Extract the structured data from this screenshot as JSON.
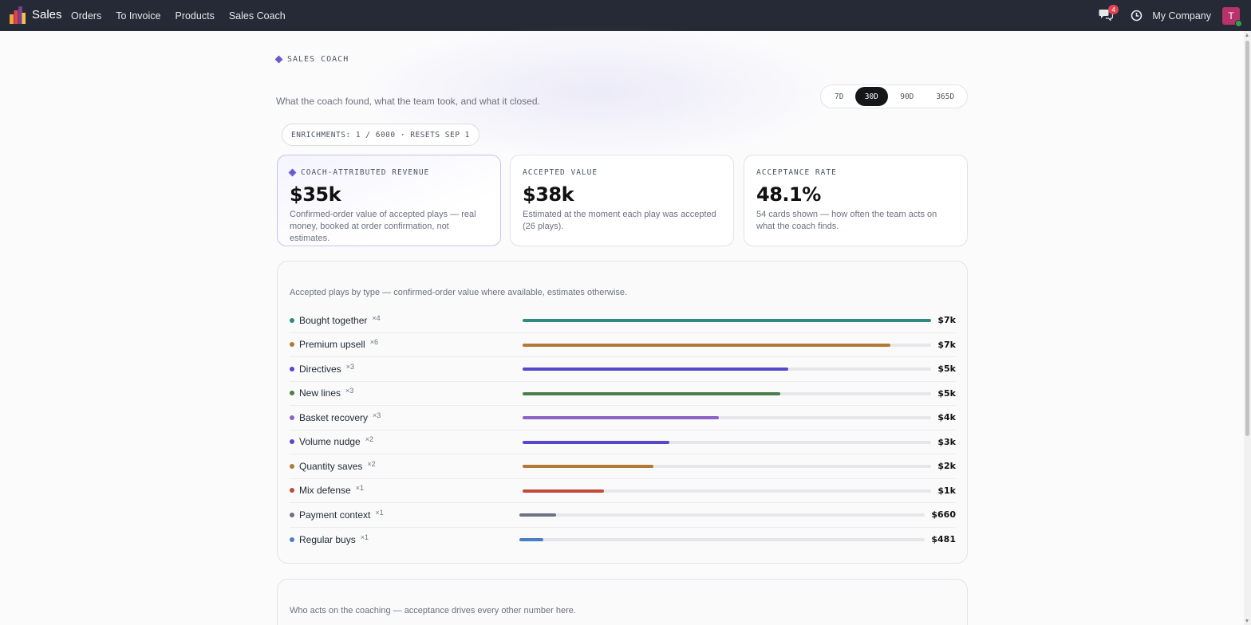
{
  "navbar": {
    "app_name": "Sales",
    "menu": [
      "Orders",
      "To Invoice",
      "Products",
      "Sales Coach"
    ],
    "chat_count": "4",
    "company": "My Company",
    "avatar_initial": "T"
  },
  "header": {
    "eyebrow": "SALES COACH",
    "subtitle": "What the coach found, what the team took, and what it closed.",
    "ranges": [
      "7D",
      "30D",
      "90D",
      "365D"
    ],
    "active_range": "30D",
    "enrichments": "ENRICHMENTS: 1 / 6000 · RESETS SEP 1"
  },
  "kpis": [
    {
      "label": "COACH-ATTRIBUTED REVENUE",
      "value": "$35k",
      "desc": "Confirmed-order value of accepted plays — real money, booked at order confirmation, not estimates."
    },
    {
      "label": "ACCEPTED VALUE",
      "value": "$38k",
      "desc": "Estimated at the moment each play was accepted (26 plays)."
    },
    {
      "label": "ACCEPTANCE RATE",
      "value": "48.1%",
      "desc": "54 cards shown — how often the team acts on what the coach finds."
    }
  ],
  "plays": {
    "caption": "Accepted plays by type — confirmed-order value where available, estimates otherwise.",
    "rows": [
      {
        "name": "Bought together",
        "count": "×4",
        "value": "$7k",
        "fraction": 1.0,
        "color": "#2e8b84"
      },
      {
        "name": "Premium upsell",
        "count": "×6",
        "value": "$7k",
        "fraction": 0.9,
        "color": "#b07a35"
      },
      {
        "name": "Directives",
        "count": "×3",
        "value": "$5k",
        "fraction": 0.65,
        "color": "#5548cc"
      },
      {
        "name": "New lines",
        "count": "×3",
        "value": "$5k",
        "fraction": 0.63,
        "color": "#4a7e4a"
      },
      {
        "name": "Basket recovery",
        "count": "×3",
        "value": "$4k",
        "fraction": 0.48,
        "color": "#8d63c8"
      },
      {
        "name": "Volume nudge",
        "count": "×2",
        "value": "$3k",
        "fraction": 0.36,
        "color": "#5548cc"
      },
      {
        "name": "Quantity saves",
        "count": "×2",
        "value": "$2k",
        "fraction": 0.32,
        "color": "#b07a35"
      },
      {
        "name": "Mix defense",
        "count": "×1",
        "value": "$1k",
        "fraction": 0.2,
        "color": "#c24a3a"
      },
      {
        "name": "Payment context",
        "count": "×1",
        "value": "$660",
        "fraction": 0.09,
        "color": "#6b7284"
      },
      {
        "name": "Regular buys",
        "count": "×1",
        "value": "$481",
        "fraction": 0.06,
        "color": "#4a7ec4"
      }
    ]
  },
  "people": {
    "caption": "Who acts on the coaching — acceptance drives every other number here."
  }
}
